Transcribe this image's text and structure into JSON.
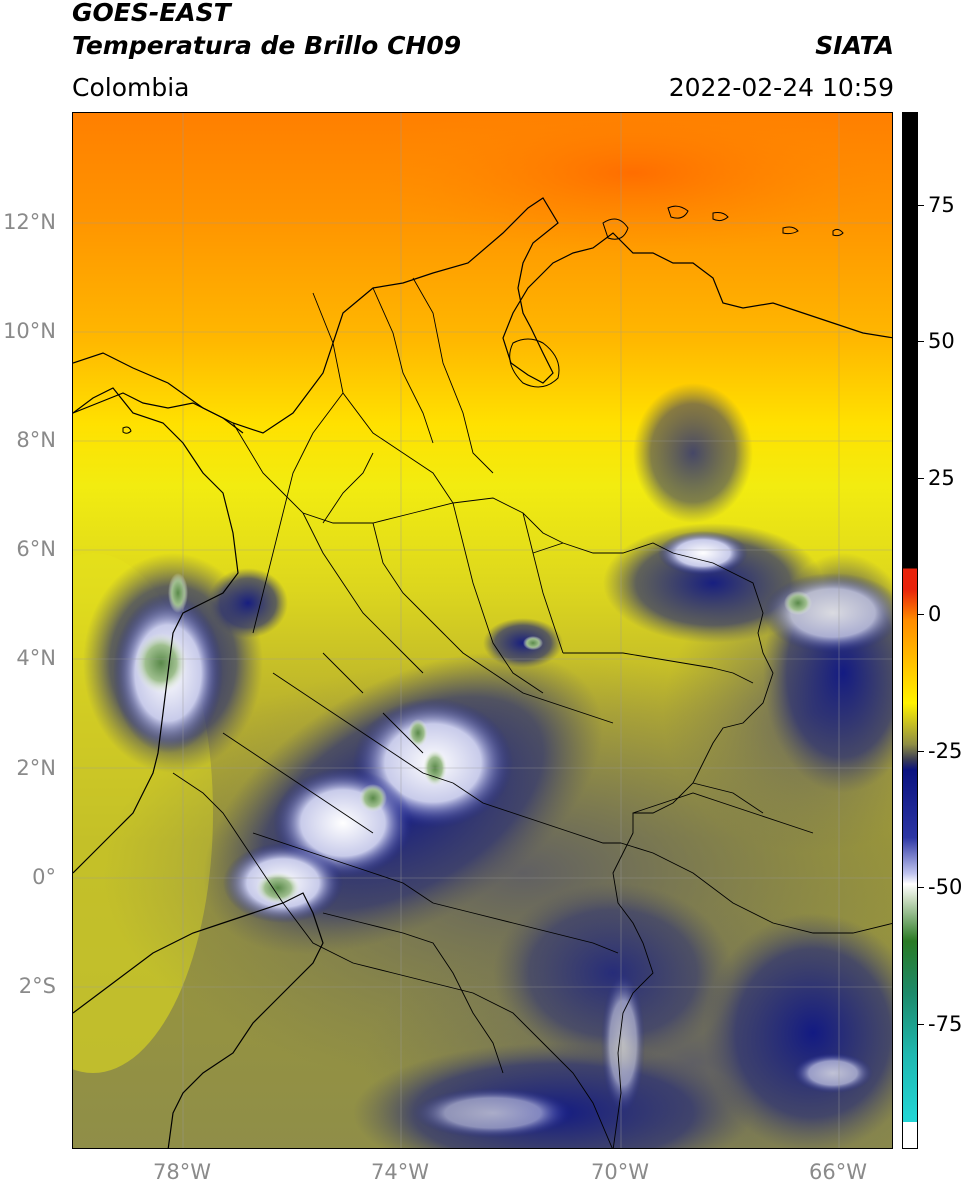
{
  "header": {
    "satellite": "GOES-EAST",
    "product": "Temperatura de Brillo CH09",
    "region": "Colombia",
    "agency": "SIATA",
    "datetime": "2022-02-24 10:59"
  },
  "map": {
    "lat_labels": [
      "12°N",
      "10°N",
      "8°N",
      "6°N",
      "4°N",
      "2°N",
      "0°",
      "2°S"
    ],
    "lon_labels": [
      "78°W",
      "74°W",
      "70°W",
      "66°W"
    ],
    "extent": {
      "lon_min": -80,
      "lon_max": -65,
      "lat_min": -5,
      "lat_max": 14
    }
  },
  "colorbar": {
    "ticks": [
      "75",
      "50",
      "25",
      "0",
      "-25",
      "-50",
      "-75"
    ],
    "range": [
      -95,
      90
    ],
    "colors": {
      "black": "#000000",
      "red": "#e8230c",
      "orange": "#ff8c00",
      "yellow": "#fff200",
      "olive": "#8f8e45",
      "navy": "#0a1280",
      "white": "#ffffff",
      "green": "#2a7a24",
      "cyan": "#22d4d4"
    }
  }
}
